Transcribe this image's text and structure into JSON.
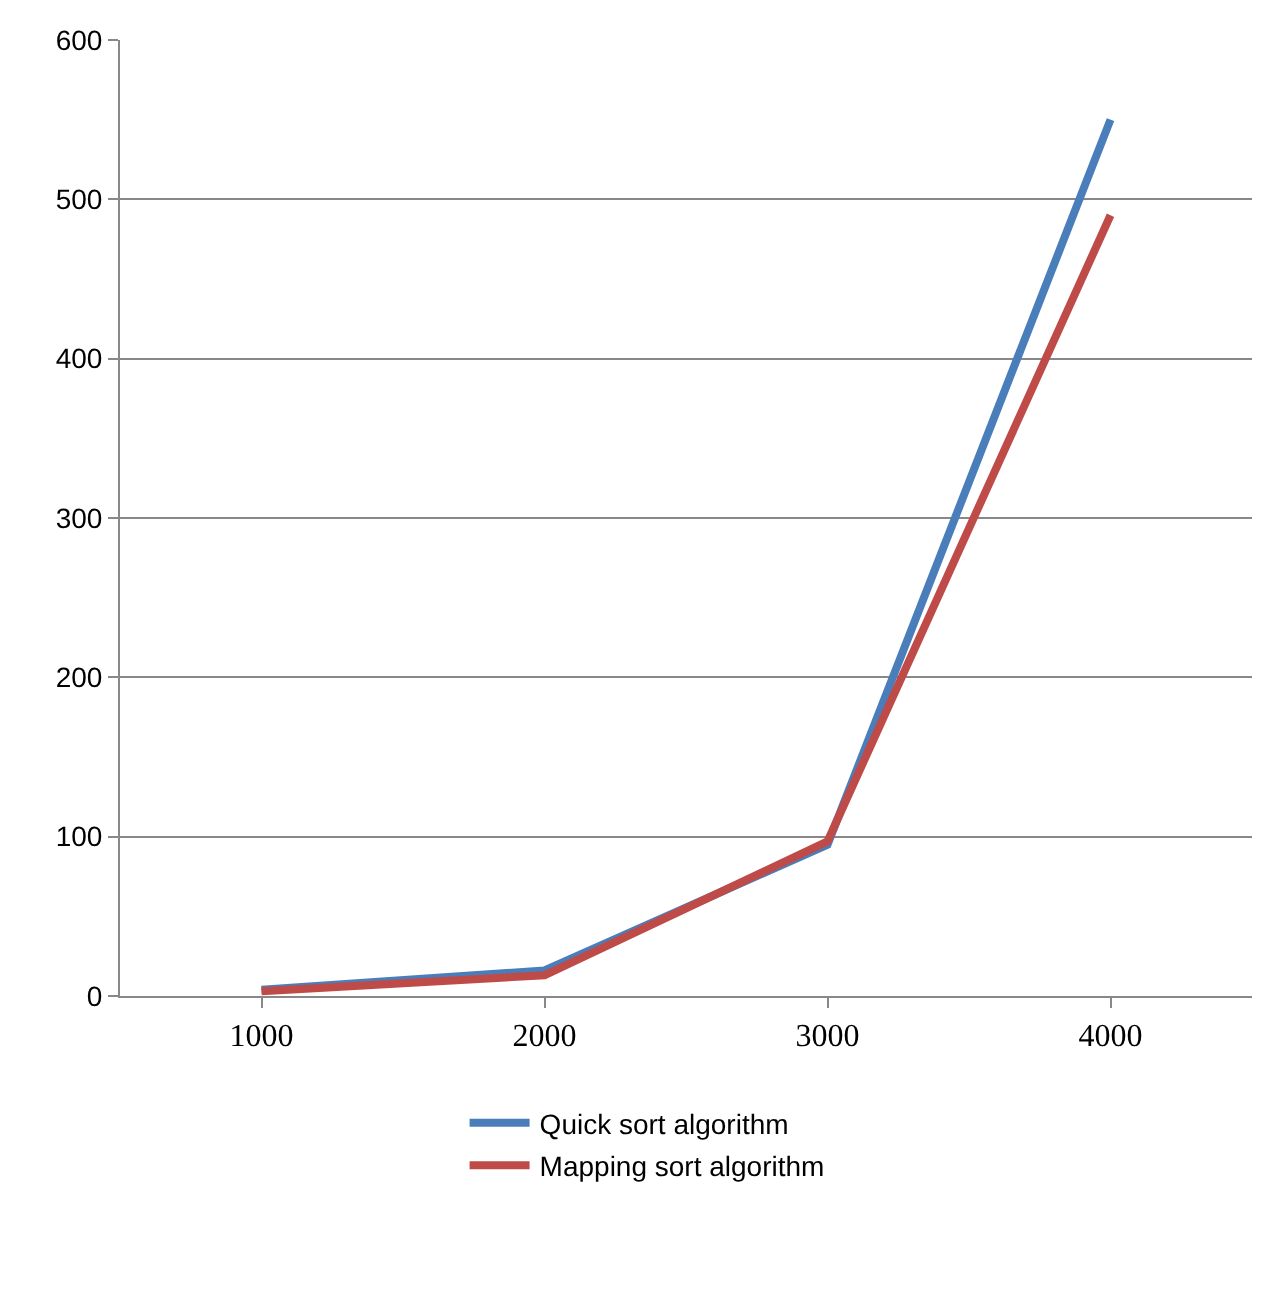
{
  "chart_data": {
    "type": "line",
    "categories": [
      "1000",
      "2000",
      "3000",
      "4000"
    ],
    "series": [
      {
        "name": "Quick sort algorithm",
        "color": "#4a7ebb",
        "values": [
          4,
          16,
          95,
          550
        ]
      },
      {
        "name": "Mapping sort algorithm",
        "color": "#be4b48",
        "values": [
          3,
          13,
          97,
          490
        ]
      }
    ],
    "ylim": [
      0,
      600
    ],
    "yticks": [
      0,
      100,
      200,
      300,
      400,
      500,
      600
    ],
    "grid": "y",
    "legend": "bottom",
    "marker": "none",
    "line_style": "solid"
  }
}
